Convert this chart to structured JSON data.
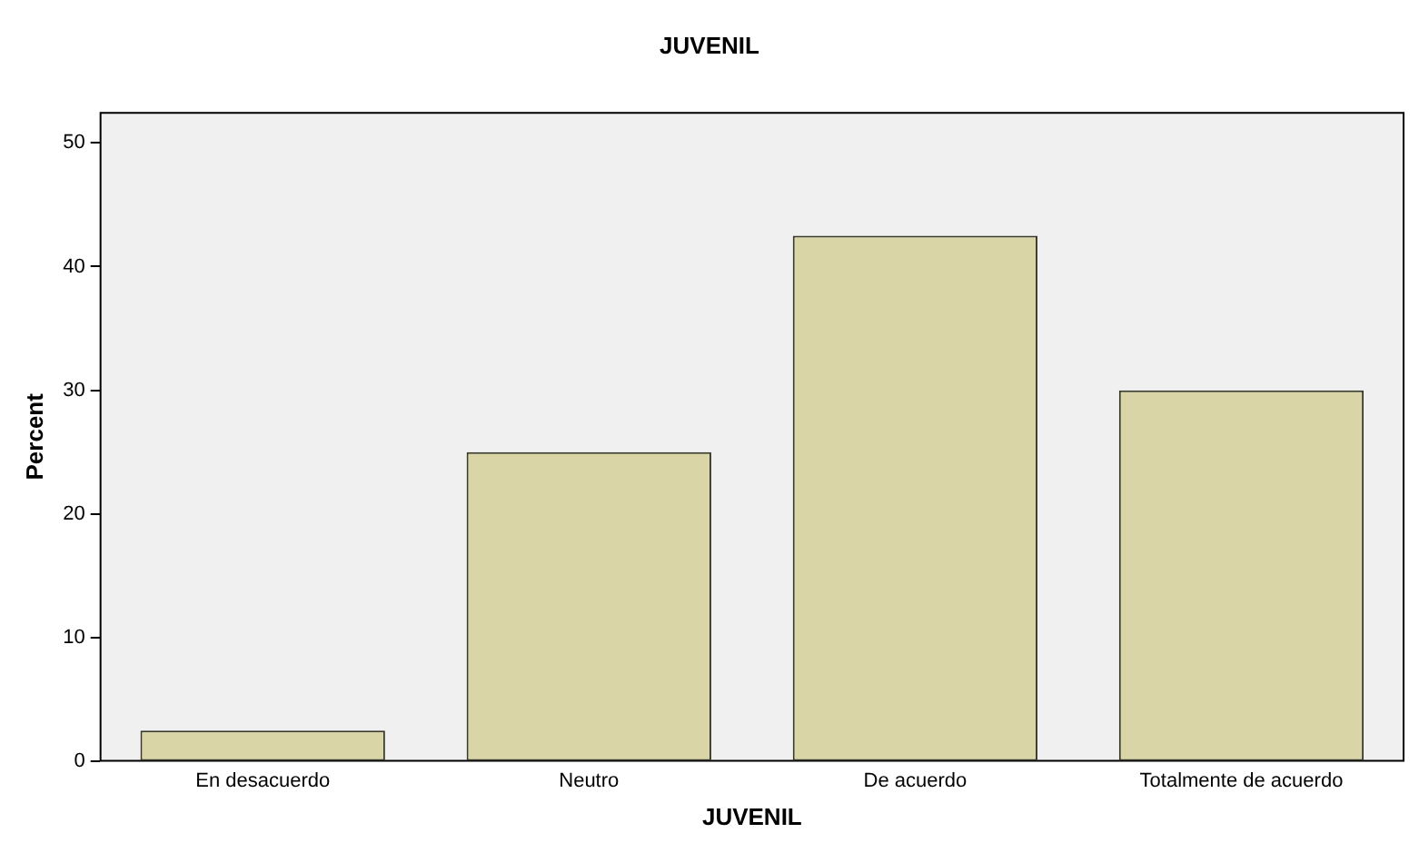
{
  "chart_data": {
    "type": "bar",
    "title": "JUVENIL",
    "xlabel": "JUVENIL",
    "ylabel": "Percent",
    "categories": [
      "En desacuerdo",
      "Neutro",
      "De acuerdo",
      "Totalmente de acuerdo"
    ],
    "values": [
      2.5,
      25,
      42.5,
      30
    ],
    "color": "#d9d5a7",
    "ylim": [
      0,
      52.5
    ],
    "yticks": [
      0,
      10,
      20,
      30,
      40,
      50
    ],
    "grid": false,
    "legend": false
  }
}
